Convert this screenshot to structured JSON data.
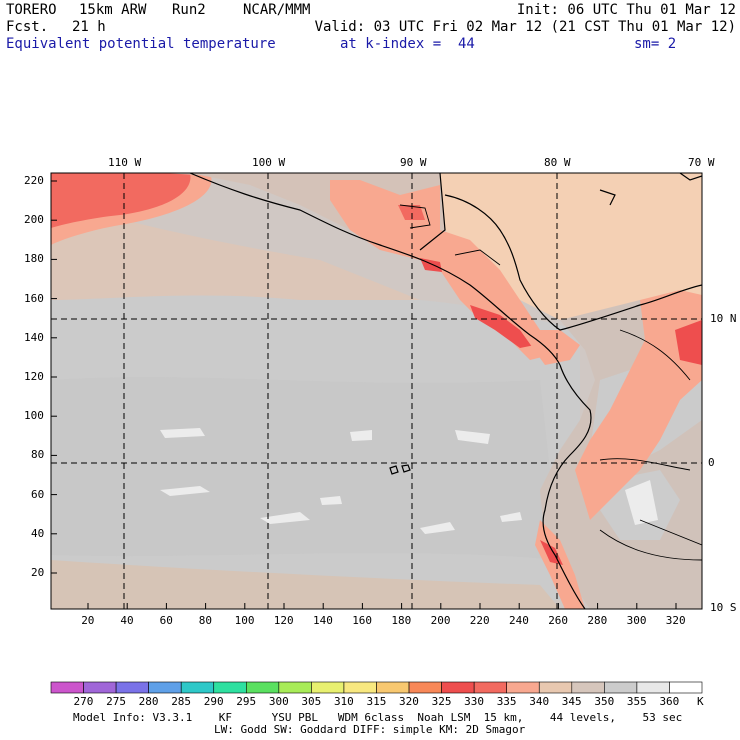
{
  "header": {
    "model": "TORERO",
    "resolution": "15km ARW",
    "run": "Run2",
    "org": "NCAR/MMM",
    "init": "Init: 06 UTC Thu 01 Mar 12",
    "fcst_label": "Fcst.",
    "fcst_value": "21 h",
    "valid": "Valid: 03 UTC Fri 02 Mar 12 (21 CST Thu 01 Mar 12)",
    "field": "Equivalent potential temperature",
    "level": "at k-index =  44",
    "smoothing": "sm= 2"
  },
  "map": {
    "lon_labels": [
      "110 W",
      "100 W",
      "90 W",
      "80 W",
      "70 W"
    ],
    "lat_labels_right": [
      "10 N",
      "0",
      "10 S"
    ],
    "y_ticks": [
      "220",
      "200",
      "180",
      "160",
      "140",
      "120",
      "100",
      "80",
      "60",
      "40",
      "20"
    ],
    "x_ticks": [
      "20",
      "40",
      "60",
      "80",
      "100",
      "120",
      "140",
      "160",
      "180",
      "200",
      "220",
      "240",
      "260",
      "280",
      "300",
      "320"
    ]
  },
  "colorbar": {
    "labels": [
      "270",
      "275",
      "280",
      "285",
      "290",
      "295",
      "300",
      "305",
      "310",
      "315",
      "320",
      "325",
      "330",
      "335",
      "340",
      "345",
      "350",
      "355",
      "360"
    ],
    "unit": "K",
    "colors": [
      "#cc55cc",
      "#a066d8",
      "#7a72e8",
      "#5fa0e8",
      "#2ec8c8",
      "#2ee0a0",
      "#5ae060",
      "#a8ec58",
      "#e8f070",
      "#f8e880",
      "#f8c870",
      "#f88858",
      "#ee4e4e",
      "#f26a60",
      "#f8a890",
      "#e8c8b0",
      "#d6c6bc",
      "#cccccc",
      "#e8e8e8",
      "#ffffff"
    ]
  },
  "footer": {
    "line1": "Model Info: V3.3.1    KF      YSU PBL   WDM 6class  Noah LSM  15 km,    44 levels,    53 sec",
    "line2": "LW: Godd SW: Goddard DIFF: simple KM: 2D Smagor"
  }
}
